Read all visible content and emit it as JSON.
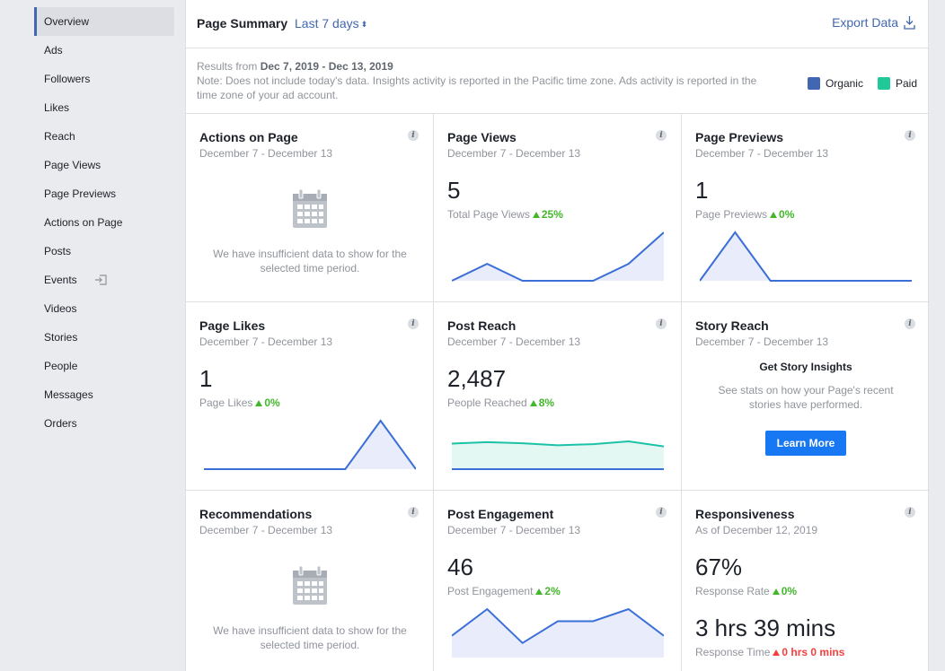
{
  "sidebar": {
    "items": [
      {
        "label": "Overview"
      },
      {
        "label": "Ads"
      },
      {
        "label": "Followers"
      },
      {
        "label": "Likes"
      },
      {
        "label": "Reach"
      },
      {
        "label": "Page Views"
      },
      {
        "label": "Page Previews"
      },
      {
        "label": "Actions on Page"
      },
      {
        "label": "Posts"
      },
      {
        "label": "Events"
      },
      {
        "label": "Videos"
      },
      {
        "label": "Stories"
      },
      {
        "label": "People"
      },
      {
        "label": "Messages"
      },
      {
        "label": "Orders"
      }
    ],
    "active": "Overview",
    "external_icon": "external-link-icon"
  },
  "header": {
    "title": "Page Summary",
    "range": "Last 7 days",
    "range_icon": "sort-arrows-icon",
    "export_label": "Export Data",
    "export_icon": "download-icon"
  },
  "notice": {
    "prefix": "Results from",
    "dates": "Dec 7, 2019 - Dec 13, 2019",
    "note": "Note: Does not include today's data. Insights activity is reported in the Pacific time zone. Ads activity is reported in the time zone of your ad account."
  },
  "legend": {
    "organic": {
      "label": "Organic",
      "color": "#4267b2"
    },
    "paid": {
      "label": "Paid",
      "color": "#20c997"
    }
  },
  "colors": {
    "accent": "#4267b2",
    "button": "#1877f2",
    "positive": "#42b72a",
    "negative": "#fa3e3e",
    "organic_line": "#3b6fd8",
    "paid_line": "#1bc2a8",
    "fill": "#e9edfb"
  },
  "cards": {
    "actions": {
      "title": "Actions on Page",
      "sub": "December 7 - December 13",
      "empty_text": "We have insufficient data to show for the selected time period.",
      "icon": "calendar-icon"
    },
    "page_views": {
      "title": "Page Views",
      "sub": "December 7 - December 13",
      "value": "5",
      "metric": "Total Page Views",
      "delta": "25%",
      "trend": [
        0.0,
        0.35,
        0.0,
        0.0,
        0.0,
        0.35,
        1.0
      ]
    },
    "page_previews": {
      "title": "Page Previews",
      "sub": "December 7 - December 13",
      "value": "1",
      "metric": "Page Previews",
      "delta": "0%",
      "trend": [
        0.0,
        1.0,
        0.0,
        0.0,
        0.0,
        0.0,
        0.0
      ]
    },
    "page_likes": {
      "title": "Page Likes",
      "sub": "December 7 - December 13",
      "value": "1",
      "metric": "Page Likes",
      "delta": "0%",
      "trend": [
        0.0,
        0.0,
        0.0,
        0.0,
        0.0,
        1.0,
        0.0
      ]
    },
    "post_reach": {
      "title": "Post Reach",
      "sub": "December 7 - December 13",
      "value": "2,487",
      "metric": "People Reached",
      "delta": "8%",
      "trend_paid": [
        0.92,
        0.97,
        0.93,
        0.86,
        0.9,
        1.0,
        0.82
      ],
      "trend_organic": [
        0.0,
        0.0,
        0.0,
        0.0,
        0.0,
        0.0,
        0.0
      ]
    },
    "story_reach": {
      "title": "Story Reach",
      "sub": "December 7 - December 13",
      "heading": "Get Story Insights",
      "text": "See stats on how your Page's recent stories have performed.",
      "button": "Learn More"
    },
    "recommendations": {
      "title": "Recommendations",
      "sub": "December 7 - December 13",
      "empty_text": "We have insufficient data to show for the selected time period.",
      "icon": "calendar-icon"
    },
    "post_engagement": {
      "title": "Post Engagement",
      "sub": "December 7 - December 13",
      "value": "46",
      "metric": "Post Engagement",
      "delta": "2%",
      "trend": [
        0.45,
        1.0,
        0.3,
        0.75,
        0.75,
        1.0,
        0.45
      ]
    },
    "responsiveness": {
      "title": "Responsiveness",
      "sub": "As of December 12, 2019",
      "rate_value": "67%",
      "rate_label": "Response Rate",
      "rate_delta": "0%",
      "time_value": "3 hrs 39 mins",
      "time_label": "Response Time",
      "time_delta": "0 hrs 0 mins"
    }
  }
}
